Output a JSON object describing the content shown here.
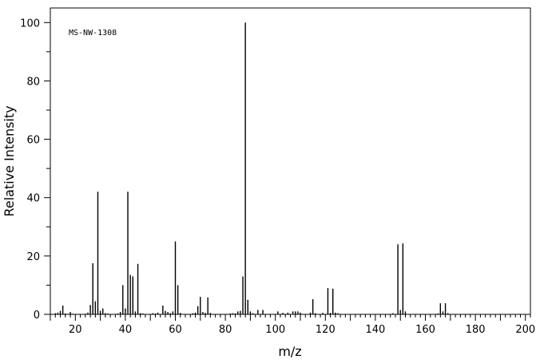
{
  "chart_data": {
    "type": "bar",
    "annotation": "MS-NW-1308",
    "xlabel": "m/z",
    "ylabel": "Relative Intensity",
    "xlim": [
      10,
      202
    ],
    "ylim": [
      0,
      105
    ],
    "x_ticks": [
      20,
      40,
      60,
      80,
      100,
      120,
      140,
      160,
      180,
      200
    ],
    "y_ticks": [
      0,
      20,
      40,
      60,
      80,
      100
    ],
    "grid": false,
    "peaks": [
      {
        "mz": 12,
        "intensity": 0.4
      },
      {
        "mz": 13,
        "intensity": 0.6
      },
      {
        "mz": 14,
        "intensity": 1.2
      },
      {
        "mz": 15,
        "intensity": 3.0
      },
      {
        "mz": 16,
        "intensity": 0.3
      },
      {
        "mz": 17,
        "intensity": 0.2
      },
      {
        "mz": 18,
        "intensity": 0.8
      },
      {
        "mz": 19,
        "intensity": 0.2
      },
      {
        "mz": 24,
        "intensity": 0.2
      },
      {
        "mz": 25,
        "intensity": 0.6
      },
      {
        "mz": 26,
        "intensity": 3.2
      },
      {
        "mz": 27,
        "intensity": 17.5
      },
      {
        "mz": 28,
        "intensity": 4.5
      },
      {
        "mz": 29,
        "intensity": 42.0
      },
      {
        "mz": 30,
        "intensity": 1.2
      },
      {
        "mz": 31,
        "intensity": 2.0
      },
      {
        "mz": 32,
        "intensity": 0.4
      },
      {
        "mz": 33,
        "intensity": 0.3
      },
      {
        "mz": 37,
        "intensity": 0.3
      },
      {
        "mz": 38,
        "intensity": 0.8
      },
      {
        "mz": 39,
        "intensity": 10.0
      },
      {
        "mz": 40,
        "intensity": 2.0
      },
      {
        "mz": 41,
        "intensity": 42.0
      },
      {
        "mz": 42,
        "intensity": 13.5
      },
      {
        "mz": 43,
        "intensity": 13.0
      },
      {
        "mz": 44,
        "intensity": 1.0
      },
      {
        "mz": 45,
        "intensity": 17.3
      },
      {
        "mz": 46,
        "intensity": 0.4
      },
      {
        "mz": 47,
        "intensity": 0.3
      },
      {
        "mz": 51,
        "intensity": 0.4
      },
      {
        "mz": 52,
        "intensity": 0.3
      },
      {
        "mz": 53,
        "intensity": 0.6
      },
      {
        "mz": 55,
        "intensity": 3.0
      },
      {
        "mz": 56,
        "intensity": 1.2
      },
      {
        "mz": 57,
        "intensity": 0.8
      },
      {
        "mz": 58,
        "intensity": 0.4
      },
      {
        "mz": 59,
        "intensity": 1.0
      },
      {
        "mz": 60,
        "intensity": 25.0
      },
      {
        "mz": 61,
        "intensity": 10.0
      },
      {
        "mz": 62,
        "intensity": 0.5
      },
      {
        "mz": 67,
        "intensity": 0.4
      },
      {
        "mz": 68,
        "intensity": 0.6
      },
      {
        "mz": 69,
        "intensity": 2.8
      },
      {
        "mz": 70,
        "intensity": 6.0
      },
      {
        "mz": 71,
        "intensity": 0.8
      },
      {
        "mz": 72,
        "intensity": 0.5
      },
      {
        "mz": 73,
        "intensity": 5.8
      },
      {
        "mz": 74,
        "intensity": 0.5
      },
      {
        "mz": 82,
        "intensity": 0.3
      },
      {
        "mz": 83,
        "intensity": 0.4
      },
      {
        "mz": 84,
        "intensity": 0.3
      },
      {
        "mz": 85,
        "intensity": 1.0
      },
      {
        "mz": 86,
        "intensity": 1.2
      },
      {
        "mz": 87,
        "intensity": 13.0
      },
      {
        "mz": 88,
        "intensity": 100.0
      },
      {
        "mz": 89,
        "intensity": 5.0
      },
      {
        "mz": 90,
        "intensity": 1.0
      },
      {
        "mz": 91,
        "intensity": 0.4
      },
      {
        "mz": 93,
        "intensity": 1.5
      },
      {
        "mz": 95,
        "intensity": 1.5
      },
      {
        "mz": 101,
        "intensity": 1.0
      },
      {
        "mz": 103,
        "intensity": 0.5
      },
      {
        "mz": 105,
        "intensity": 0.6
      },
      {
        "mz": 107,
        "intensity": 1.0
      },
      {
        "mz": 108,
        "intensity": 1.0
      },
      {
        "mz": 109,
        "intensity": 1.0
      },
      {
        "mz": 110,
        "intensity": 0.6
      },
      {
        "mz": 114,
        "intensity": 0.6
      },
      {
        "mz": 115,
        "intensity": 5.2
      },
      {
        "mz": 116,
        "intensity": 0.4
      },
      {
        "mz": 119,
        "intensity": 0.5
      },
      {
        "mz": 121,
        "intensity": 9.0
      },
      {
        "mz": 122,
        "intensity": 0.5
      },
      {
        "mz": 123,
        "intensity": 8.8
      },
      {
        "mz": 124,
        "intensity": 0.6
      },
      {
        "mz": 125,
        "intensity": 0.4
      },
      {
        "mz": 147,
        "intensity": 0.4
      },
      {
        "mz": 149,
        "intensity": 24.0
      },
      {
        "mz": 150,
        "intensity": 1.5
      },
      {
        "mz": 151,
        "intensity": 24.3
      },
      {
        "mz": 152,
        "intensity": 1.0
      },
      {
        "mz": 165,
        "intensity": 0.3
      },
      {
        "mz": 166,
        "intensity": 3.8
      },
      {
        "mz": 167,
        "intensity": 1.0
      },
      {
        "mz": 168,
        "intensity": 3.8
      },
      {
        "mz": 169,
        "intensity": 0.4
      }
    ]
  }
}
